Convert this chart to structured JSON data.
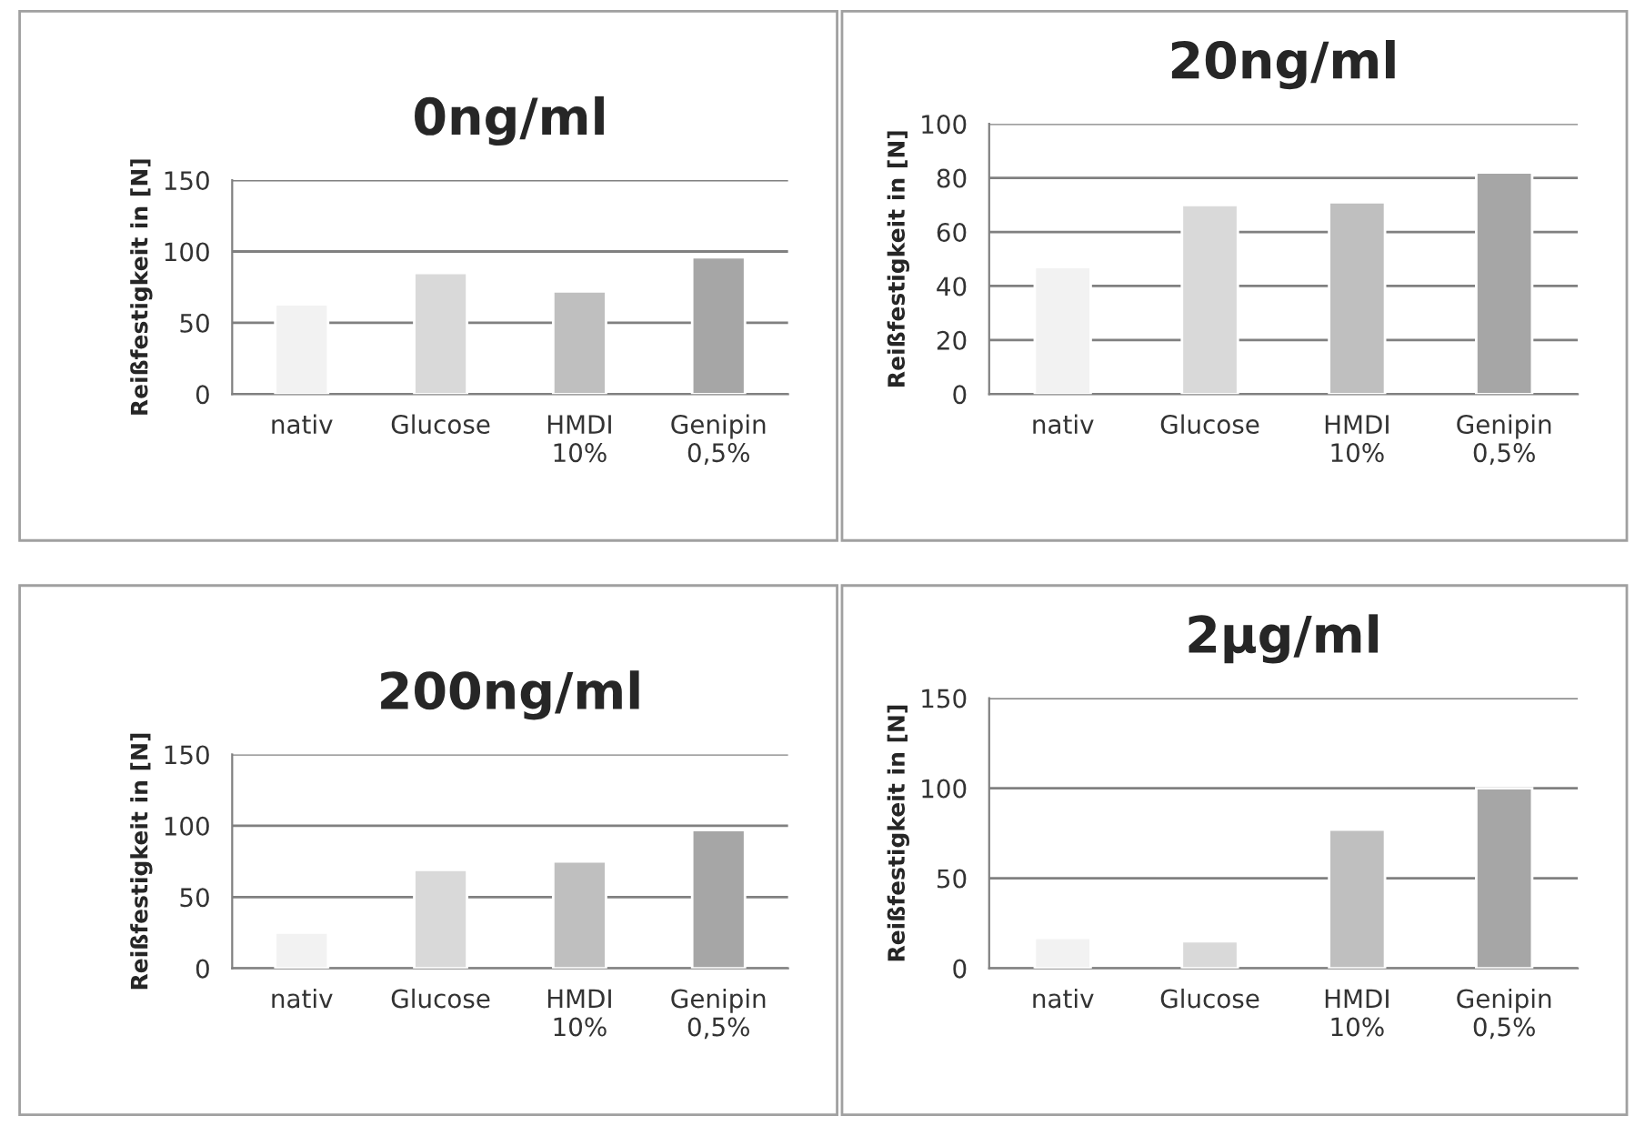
{
  "chart_data": [
    {
      "type": "bar",
      "title": "0ng/ml",
      "ylabel": "Reißfestigkeit in [N]",
      "categories": [
        "nativ",
        "Glucose",
        "HMDI\n10%",
        "Genipin\n0,5%"
      ],
      "values": [
        63,
        85,
        72,
        96
      ],
      "colors": [
        "#f2f2f2",
        "#d9d9d9",
        "#bfbfbf",
        "#a6a6a6"
      ],
      "ylim": [
        0,
        150
      ],
      "yticks": [
        0,
        50,
        100,
        150
      ],
      "grid": "y"
    },
    {
      "type": "bar",
      "title": "20ng/ml",
      "ylabel": "Reißfestigkeit in [N]",
      "categories": [
        "nativ",
        "Glucose",
        "HMDI\n10%",
        "Genipin\n0,5%"
      ],
      "values": [
        47,
        70,
        71,
        82
      ],
      "colors": [
        "#f2f2f2",
        "#d9d9d9",
        "#bfbfbf",
        "#a6a6a6"
      ],
      "ylim": [
        0,
        100
      ],
      "yticks": [
        0,
        20,
        40,
        60,
        80,
        100
      ],
      "grid": "y"
    },
    {
      "type": "bar",
      "title": "200ng/ml",
      "ylabel": "Reißfestigkeit in [N]",
      "categories": [
        "nativ",
        "Glucose",
        "HMDI\n10%",
        "Genipin\n0,5%"
      ],
      "values": [
        25,
        69,
        75,
        97
      ],
      "colors": [
        "#f2f2f2",
        "#d9d9d9",
        "#bfbfbf",
        "#a6a6a6"
      ],
      "ylim": [
        0,
        150
      ],
      "yticks": [
        0,
        50,
        100,
        150
      ],
      "grid": "y"
    },
    {
      "type": "bar",
      "title": "2µg/ml",
      "ylabel": "Reißfestigkeit in [N]",
      "categories": [
        "nativ",
        "Glucose",
        "HMDI\n10%",
        "Genipin\n0,5%"
      ],
      "values": [
        17,
        15,
        77,
        100
      ],
      "colors": [
        "#f2f2f2",
        "#d9d9d9",
        "#bfbfbf",
        "#a6a6a6"
      ],
      "ylim": [
        0,
        150
      ],
      "yticks": [
        0,
        50,
        100,
        150
      ],
      "grid": "y"
    }
  ]
}
